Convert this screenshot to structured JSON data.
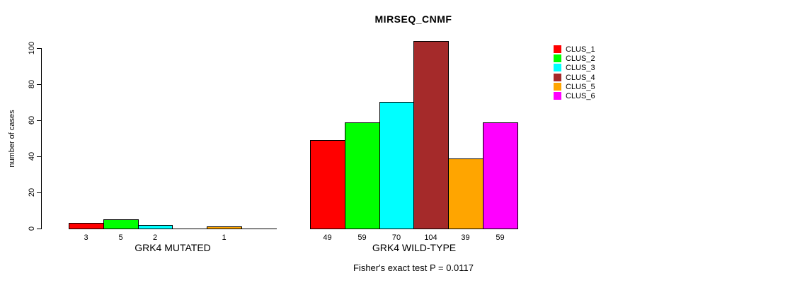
{
  "title": "MIRSEQ_CNMF",
  "footer": "Fisher's exact test P = 0.0117",
  "chart_data": {
    "type": "bar",
    "title": "MIRSEQ_CNMF",
    "ylabel": "number of cases",
    "ylim": [
      0,
      100
    ],
    "yticks": [
      0,
      20,
      40,
      60,
      80,
      100
    ],
    "grid": false,
    "legend_position": "right",
    "legend": [
      "CLUS_1",
      "CLUS_2",
      "CLUS_3",
      "CLUS_4",
      "CLUS_5",
      "CLUS_6"
    ],
    "series_colors": [
      "#FF0000",
      "#00FF00",
      "#00FFFF",
      "#A52A2A",
      "#FFA500",
      "#FF00FF"
    ],
    "groups": [
      {
        "label": "GRK4 MUTATED",
        "values": [
          3,
          5,
          2,
          0,
          1,
          0
        ]
      },
      {
        "label": "GRK4 WILD-TYPE",
        "values": [
          49,
          59,
          70,
          104,
          39,
          59
        ]
      }
    ],
    "value_labels_shown": true,
    "annotation": "Fisher's exact test P = 0.0117"
  }
}
